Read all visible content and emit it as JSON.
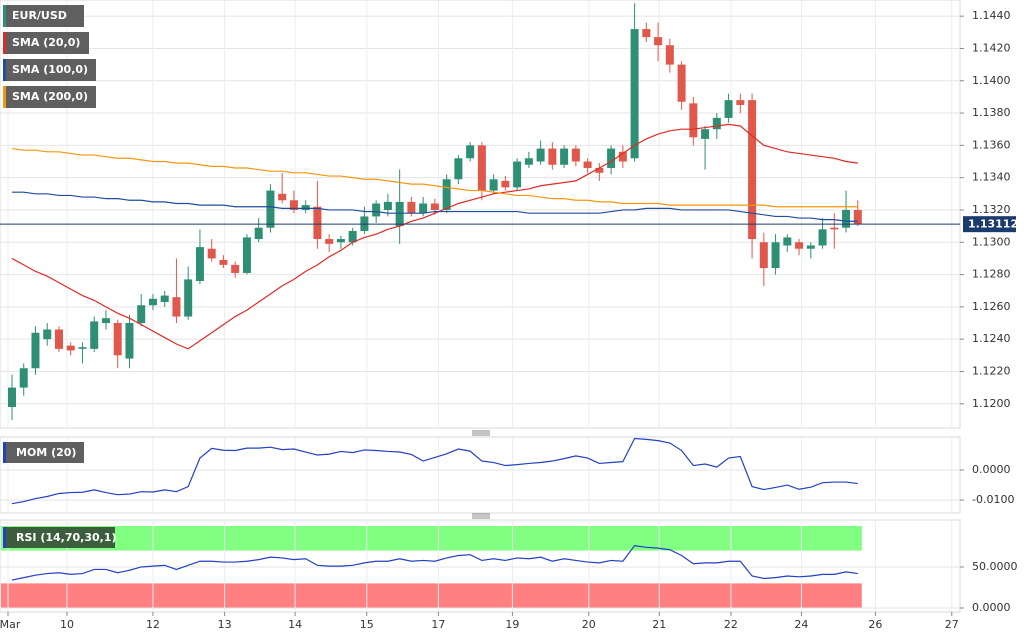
{
  "chart_data": [
    {
      "type": "candlestick",
      "series": [
        {
          "name": "EUR/USD",
          "type": "candlestick",
          "up_color": "#2f8f74",
          "down_color": "#e0584b",
          "open": [
            1.1198,
            1.121,
            1.1222,
            1.124,
            1.1246,
            1.1236,
            1.1234,
            1.1234,
            1.125,
            1.125,
            1.1228,
            1.125,
            1.1261,
            1.1263,
            1.1266,
            1.1254,
            1.1276,
            1.1296,
            1.1289,
            1.1286,
            1.1281,
            1.1302,
            1.1309,
            1.133,
            1.1326,
            1.132,
            1.1322,
            1.1302,
            1.13,
            1.13,
            1.1307,
            1.1316,
            1.132,
            1.131,
            1.1325,
            1.1318,
            1.1324,
            1.132,
            1.1339,
            1.1352,
            1.136,
            1.1332,
            1.1338,
            1.1334,
            1.1348,
            1.135,
            1.1358,
            1.1348,
            1.1358,
            1.135,
            1.1346,
            1.1346,
            1.1356,
            1.1352,
            1.1432,
            1.1427,
            1.1422,
            1.141,
            1.1386,
            1.1364,
            1.137,
            1.1377,
            1.1388,
            1.1388,
            1.13,
            1.1284,
            1.1298,
            1.13,
            1.1296,
            1.1298,
            1.1309,
            1.1309,
            1.132
          ],
          "high": [
            1.1218,
            1.1225,
            1.1248,
            1.125,
            1.1248,
            1.1238,
            1.1238,
            1.1254,
            1.1258,
            1.1252,
            1.1255,
            1.1268,
            1.1268,
            1.127,
            1.129,
            1.1285,
            1.1308,
            1.1302,
            1.1292,
            1.1288,
            1.1305,
            1.1315,
            1.1336,
            1.1343,
            1.1332,
            1.1326,
            1.1338,
            1.1305,
            1.1304,
            1.1309,
            1.1322,
            1.1326,
            1.133,
            1.1345,
            1.1328,
            1.1328,
            1.1327,
            1.1342,
            1.1354,
            1.1362,
            1.1362,
            1.1342,
            1.1341,
            1.1352,
            1.1356,
            1.1363,
            1.1362,
            1.136,
            1.136,
            1.1352,
            1.1349,
            1.136,
            1.136,
            1.1448,
            1.1436,
            1.1436,
            1.1426,
            1.1412,
            1.139,
            1.1372,
            1.138,
            1.1392,
            1.1392,
            1.1392,
            1.1306,
            1.1305,
            1.1305,
            1.1302,
            1.13,
            1.1315,
            1.1318,
            1.1332,
            1.1326
          ],
          "low": [
            1.119,
            1.1205,
            1.1218,
            1.1236,
            1.1232,
            1.123,
            1.1225,
            1.1232,
            1.1246,
            1.1222,
            1.1222,
            1.1248,
            1.1258,
            1.126,
            1.125,
            1.1252,
            1.1274,
            1.1288,
            1.1284,
            1.1278,
            1.128,
            1.13,
            1.1306,
            1.1324,
            1.1318,
            1.1318,
            1.1296,
            1.1294,
            1.1296,
            1.1298,
            1.1305,
            1.1312,
            1.1316,
            1.1299,
            1.1316,
            1.1316,
            1.1317,
            1.1318,
            1.1336,
            1.135,
            1.1326,
            1.133,
            1.1332,
            1.1332,
            1.1346,
            1.1348,
            1.1345,
            1.1346,
            1.1347,
            1.1343,
            1.1338,
            1.1342,
            1.1346,
            1.135,
            1.1424,
            1.1412,
            1.1405,
            1.1382,
            1.136,
            1.1345,
            1.1364,
            1.1374,
            1.138,
            1.129,
            1.1273,
            1.128,
            1.1294,
            1.1292,
            1.129,
            1.1296,
            1.1296,
            1.1306,
            1.131
          ],
          "close": [
            1.121,
            1.1222,
            1.1244,
            1.1246,
            1.1234,
            1.1233,
            1.1235,
            1.1251,
            1.1253,
            1.123,
            1.125,
            1.1261,
            1.1265,
            1.1267,
            1.1254,
            1.1277,
            1.1297,
            1.129,
            1.1286,
            1.1281,
            1.1303,
            1.1309,
            1.1332,
            1.1326,
            1.132,
            1.1323,
            1.1302,
            1.1299,
            1.1302,
            1.1307,
            1.1316,
            1.1324,
            1.1325,
            1.1325,
            1.1318,
            1.1324,
            1.132,
            1.1339,
            1.1352,
            1.136,
            1.1332,
            1.1339,
            1.1334,
            1.135,
            1.1352,
            1.1358,
            1.1348,
            1.1358,
            1.135,
            1.1346,
            1.1343,
            1.1358,
            1.135,
            1.1432,
            1.1427,
            1.1422,
            1.141,
            1.1387,
            1.1365,
            1.137,
            1.1377,
            1.1388,
            1.1385,
            1.1302,
            1.1284,
            1.13,
            1.1303,
            1.1296,
            1.1298,
            1.1308,
            1.1308,
            1.132,
            1.1311
          ]
        },
        {
          "name": "SMA (20,0)",
          "type": "line",
          "color": "#e02a24",
          "values": [
            1.129,
            1.1286,
            1.1282,
            1.1279,
            1.1275,
            1.1271,
            1.1267,
            1.1264,
            1.126,
            1.1256,
            1.1253,
            1.1249,
            1.1245,
            1.1241,
            1.1237,
            1.1234,
            1.1239,
            1.1244,
            1.1249,
            1.1254,
            1.1258,
            1.1263,
            1.1268,
            1.1273,
            1.1277,
            1.1282,
            1.1286,
            1.1291,
            1.1295,
            1.13,
            1.1303,
            1.1305,
            1.1308,
            1.131,
            1.1313,
            1.1315,
            1.1318,
            1.1321,
            1.1324,
            1.1326,
            1.1328,
            1.133,
            1.1331,
            1.1332,
            1.1333,
            1.1335,
            1.1336,
            1.1337,
            1.1338,
            1.1342,
            1.1346,
            1.135,
            1.1355,
            1.136,
            1.1364,
            1.1367,
            1.1369,
            1.137,
            1.137,
            1.1371,
            1.1372,
            1.1373,
            1.1372,
            1.1366,
            1.136,
            1.1358,
            1.1356,
            1.1355,
            1.1354,
            1.1353,
            1.1352,
            1.135,
            1.1349
          ]
        },
        {
          "name": "SMA (100,0)",
          "type": "line",
          "color": "#1f4e9c",
          "values": [
            1.1331,
            1.1331,
            1.133,
            1.133,
            1.1329,
            1.1329,
            1.1328,
            1.1328,
            1.1327,
            1.1327,
            1.1326,
            1.1326,
            1.1325,
            1.1325,
            1.1324,
            1.1324,
            1.1323,
            1.1323,
            1.1323,
            1.1322,
            1.1322,
            1.1322,
            1.1322,
            1.1321,
            1.1321,
            1.1321,
            1.1321,
            1.132,
            1.132,
            1.132,
            1.1319,
            1.1319,
            1.1318,
            1.1318,
            1.1318,
            1.1318,
            1.1319,
            1.1319,
            1.1319,
            1.1319,
            1.1319,
            1.1319,
            1.1319,
            1.1319,
            1.1318,
            1.1318,
            1.1318,
            1.1318,
            1.1318,
            1.1318,
            1.1318,
            1.1319,
            1.132,
            1.132,
            1.1321,
            1.1321,
            1.1321,
            1.132,
            1.132,
            1.132,
            1.132,
            1.132,
            1.1319,
            1.1318,
            1.1317,
            1.1316,
            1.1316,
            1.1315,
            1.1315,
            1.1314,
            1.1314,
            1.1313,
            1.1313
          ]
        },
        {
          "name": "SMA (200,0)",
          "type": "line",
          "color": "#f5960f",
          "values": [
            1.1358,
            1.1357,
            1.1357,
            1.1356,
            1.1356,
            1.1355,
            1.1354,
            1.1354,
            1.1353,
            1.1352,
            1.1352,
            1.1351,
            1.135,
            1.135,
            1.1349,
            1.1349,
            1.1348,
            1.1347,
            1.1347,
            1.1346,
            1.1346,
            1.1345,
            1.1344,
            1.1344,
            1.1343,
            1.1343,
            1.1342,
            1.1341,
            1.1341,
            1.134,
            1.1339,
            1.1339,
            1.1338,
            1.1337,
            1.1336,
            1.1336,
            1.1335,
            1.1334,
            1.1333,
            1.1332,
            1.1332,
            1.1331,
            1.133,
            1.1329,
            1.1329,
            1.1328,
            1.1327,
            1.1327,
            1.1326,
            1.1326,
            1.1325,
            1.1325,
            1.1324,
            1.1324,
            1.1324,
            1.1324,
            1.1323,
            1.1323,
            1.1323,
            1.1323,
            1.1323,
            1.1323,
            1.1323,
            1.1323,
            1.1323,
            1.1322,
            1.1322,
            1.1322,
            1.1322,
            1.1322,
            1.1322,
            1.1322,
            1.1322
          ]
        }
      ],
      "last_price": 1.13112,
      "last_price_color": "#1b3a6e",
      "ylim": [
        1.1185,
        1.145
      ],
      "yticks": [
        {
          "value": 1.12,
          "label": "1.1200"
        },
        {
          "value": 1.122,
          "label": "1.1220"
        },
        {
          "value": 1.124,
          "label": "1.1240"
        },
        {
          "value": 1.126,
          "label": "1.1260"
        },
        {
          "value": 1.128,
          "label": "1.1280"
        },
        {
          "value": 1.13,
          "label": "1.1300"
        },
        {
          "value": 1.132,
          "label": "1.1320"
        },
        {
          "value": 1.134,
          "label": "1.1340"
        },
        {
          "value": 1.136,
          "label": "1.1360"
        },
        {
          "value": 1.138,
          "label": "1.1380"
        },
        {
          "value": 1.14,
          "label": "1.1400"
        },
        {
          "value": 1.142,
          "label": "1.1420"
        },
        {
          "value": 1.144,
          "label": "1.1440"
        }
      ],
      "grid": true
    },
    {
      "type": "line",
      "series": [
        {
          "name": "MOM (20)",
          "color": "#2240c4",
          "values": [
            -0.0112,
            -0.0105,
            -0.0095,
            -0.0088,
            -0.0078,
            -0.0075,
            -0.0074,
            -0.0066,
            -0.0075,
            -0.0082,
            -0.008,
            -0.0072,
            -0.0073,
            -0.0066,
            -0.0072,
            -0.0055,
            0.004,
            0.0072,
            0.0066,
            0.0065,
            0.0073,
            0.0073,
            0.0076,
            0.0068,
            0.007,
            0.006,
            0.005,
            0.0053,
            0.0062,
            0.0058,
            0.0067,
            0.0065,
            0.0062,
            0.006,
            0.0052,
            0.003,
            0.0042,
            0.0054,
            0.007,
            0.0063,
            0.003,
            0.0025,
            0.0015,
            0.0018,
            0.0022,
            0.0025,
            0.003,
            0.0038,
            0.0047,
            0.004,
            0.0022,
            0.0025,
            0.0028,
            0.0105,
            0.0102,
            0.0098,
            0.009,
            0.0065,
            0.0015,
            0.002,
            0.001,
            0.004,
            0.0045,
            -0.0055,
            -0.0065,
            -0.0058,
            -0.005,
            -0.0064,
            -0.0057,
            -0.0042,
            -0.004,
            -0.004,
            -0.0045
          ]
        }
      ],
      "ylim": [
        -0.0143,
        0.011
      ],
      "yticks": [
        {
          "value": 0,
          "label": "0.0000"
        },
        {
          "value": -0.01,
          "label": "-0.0100"
        }
      ],
      "grid": true
    },
    {
      "type": "line",
      "series": [
        {
          "name": "RSI (14,70,30,1)",
          "color": "#2240c4",
          "values": [
            34,
            37,
            40,
            42,
            43,
            41,
            42,
            47,
            47,
            43,
            46,
            50,
            51,
            52,
            47,
            52,
            57,
            57,
            56,
            56,
            57,
            59,
            62,
            61,
            59,
            60,
            52,
            51,
            51,
            52,
            55,
            57,
            57,
            60,
            57,
            58,
            57,
            61,
            64,
            65,
            58,
            60,
            58,
            61,
            60,
            62,
            57,
            60,
            58,
            56,
            55,
            58,
            57,
            76,
            74,
            73,
            71,
            64,
            54,
            55,
            55,
            57,
            57,
            39,
            36,
            37,
            39,
            38,
            39,
            41,
            41,
            44,
            42
          ]
        }
      ],
      "bands": [
        {
          "from": 70,
          "to": 100,
          "color": "#80ff80"
        },
        {
          "from": 0,
          "to": 30,
          "color": "#ff8080"
        }
      ],
      "ylim": [
        -4.9,
        107.3
      ],
      "yticks": [
        {
          "value": 50,
          "label": "50.0000"
        },
        {
          "value": 0,
          "label": "0.0000"
        }
      ],
      "xlim": [
        -1.02,
        80.7
      ],
      "xticks": [
        {
          "value": -0.34,
          "label": "Mar"
        },
        {
          "value": 4.68,
          "label": "10"
        },
        {
          "value": 12,
          "label": "12"
        },
        {
          "value": 18.1,
          "label": "13"
        },
        {
          "value": 24.1,
          "label": "14"
        },
        {
          "value": 30.2,
          "label": "15"
        },
        {
          "value": 36.3,
          "label": "17"
        },
        {
          "value": 42.6,
          "label": "19"
        },
        {
          "value": 49.1,
          "label": "20"
        },
        {
          "value": 55.1,
          "label": "21"
        },
        {
          "value": 61.2,
          "label": "22"
        },
        {
          "value": 67.2,
          "label": "24"
        },
        {
          "value": 73.5,
          "label": "26"
        },
        {
          "value": 80,
          "label": "27"
        }
      ],
      "grid": true
    }
  ]
}
